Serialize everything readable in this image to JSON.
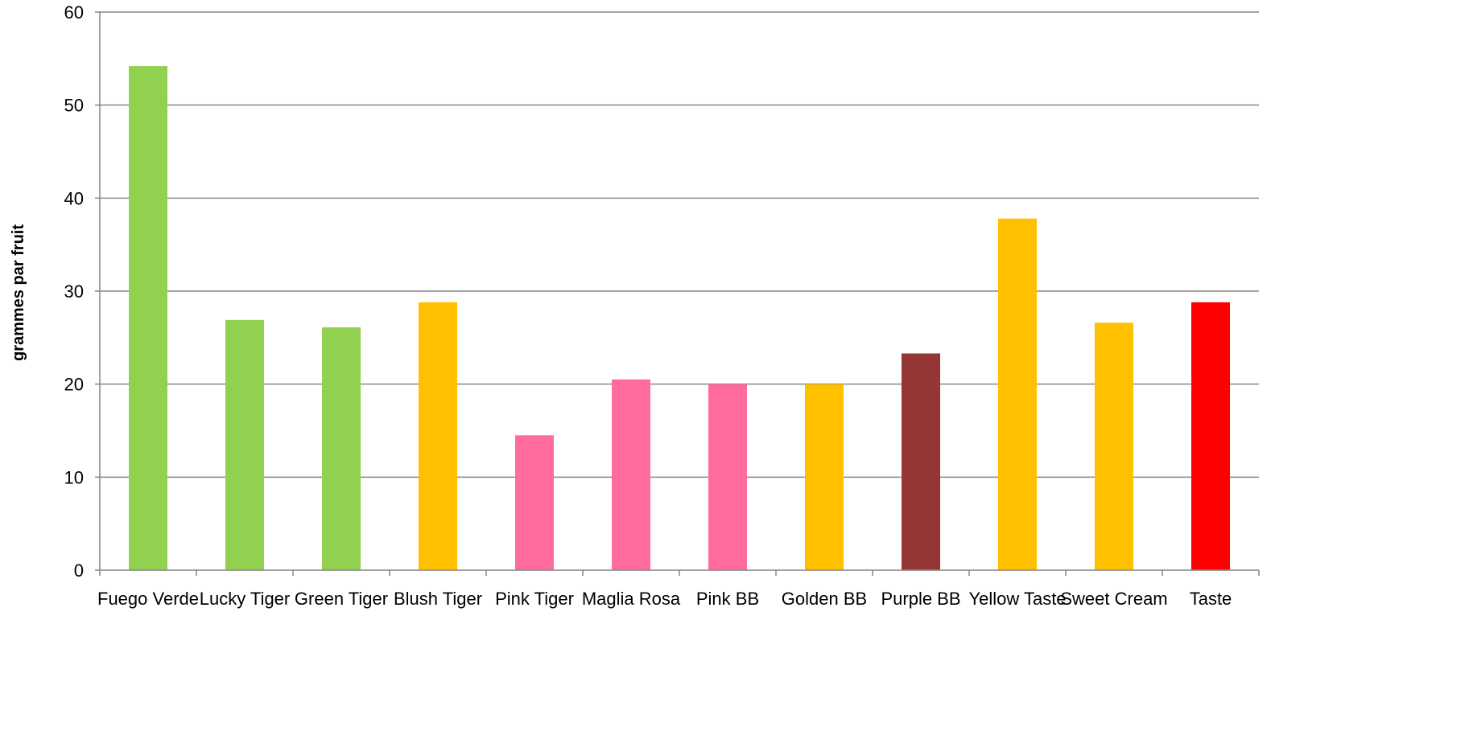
{
  "chart_data": {
    "type": "bar",
    "title": "",
    "xlabel": "",
    "ylabel": "grammes par fruit",
    "ylim": [
      0,
      60
    ],
    "yticks": [
      0,
      10,
      20,
      30,
      40,
      50,
      60
    ],
    "grid": true,
    "legend": "none",
    "categories": [
      "Fuego Verde",
      "Lucky Tiger",
      "Green Tiger",
      "Blush Tiger",
      "Pink Tiger",
      "Maglia Rosa",
      "Pink BB",
      "Golden BB",
      "Purple BB",
      "Yellow Taste",
      "Sweet Cream",
      "Taste"
    ],
    "values": [
      54.2,
      26.9,
      26.1,
      28.8,
      14.5,
      20.5,
      20.0,
      20.0,
      23.3,
      37.8,
      26.6,
      28.8
    ],
    "colors": [
      "#92D050",
      "#92D050",
      "#92D050",
      "#FFC000",
      "#FF6C9B",
      "#FF6C9B",
      "#FF6C9B",
      "#FFC000",
      "#943634",
      "#FFC000",
      "#FFC000",
      "#FF0000"
    ]
  }
}
